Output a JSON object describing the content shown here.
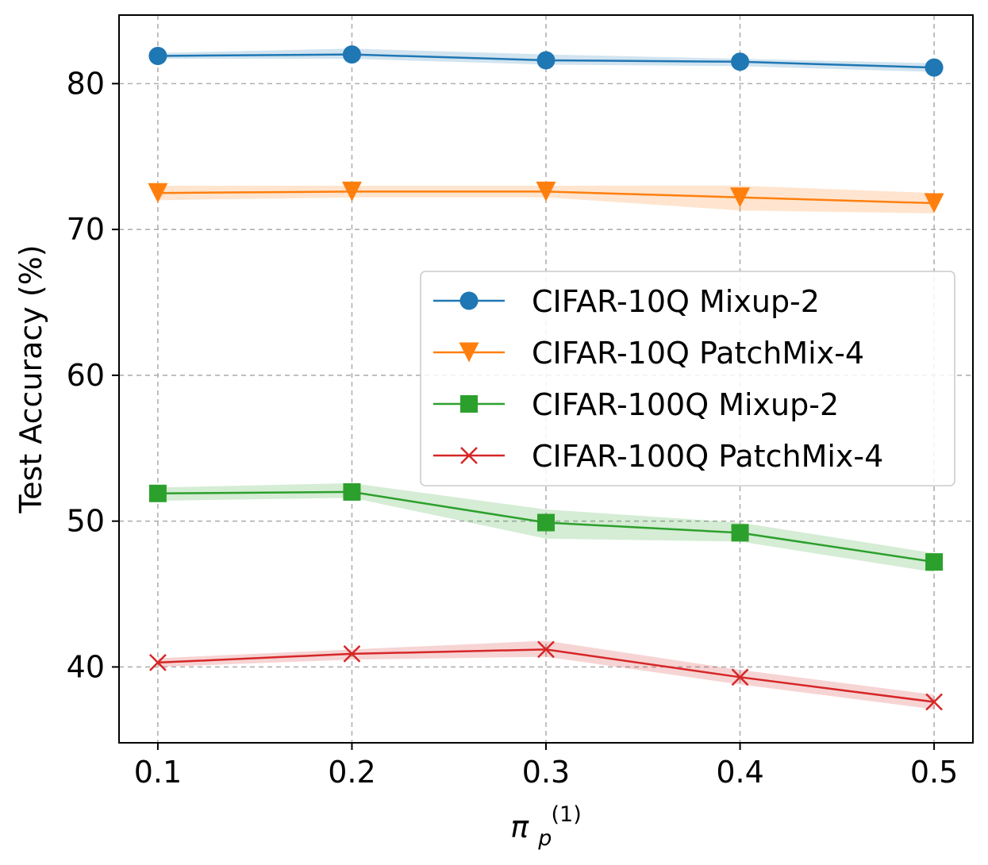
{
  "chart_data": {
    "type": "line",
    "title": "",
    "xlabel": "π",
    "xlabel_sub": "p",
    "xlabel_sup": "(1)",
    "ylabel": "Test Accuracy (%)",
    "x": [
      0.1,
      0.2,
      0.3,
      0.4,
      0.5
    ],
    "x_tick_labels": [
      "0.1",
      "0.2",
      "0.3",
      "0.4",
      "0.5"
    ],
    "y_ticks": [
      40,
      50,
      60,
      70,
      80
    ],
    "y_tick_labels": [
      "40",
      "50",
      "60",
      "70",
      "80"
    ],
    "xlim": [
      0.08,
      0.52
    ],
    "ylim": [
      34.8,
      84.7
    ],
    "grid": true,
    "legend_position": "center-right",
    "series": [
      {
        "name": "CIFAR-10Q Mixup-2",
        "color": "#1f77b4",
        "marker": "circle",
        "values": [
          81.9,
          82.0,
          81.6,
          81.5,
          81.1
        ],
        "lower": [
          81.7,
          81.7,
          81.3,
          81.2,
          80.8
        ],
        "upper": [
          82.1,
          82.4,
          82.0,
          81.7,
          81.4
        ]
      },
      {
        "name": "CIFAR-10Q PatchMix-4",
        "color": "#ff7f0e",
        "marker": "triangle-down",
        "values": [
          72.5,
          72.6,
          72.6,
          72.2,
          71.8
        ],
        "lower": [
          72.0,
          72.2,
          72.2,
          71.3,
          71.1
        ],
        "upper": [
          73.0,
          73.0,
          73.0,
          73.0,
          72.5
        ]
      },
      {
        "name": "CIFAR-100Q Mixup-2",
        "color": "#2ca02c",
        "marker": "square",
        "values": [
          51.9,
          52.0,
          49.9,
          49.2,
          47.2
        ],
        "lower": [
          51.4,
          51.6,
          48.8,
          48.6,
          46.5
        ],
        "upper": [
          52.3,
          52.6,
          50.8,
          49.9,
          47.8
        ]
      },
      {
        "name": "CIFAR-100Q PatchMix-4",
        "color": "#d62728",
        "marker": "x",
        "values": [
          40.3,
          40.9,
          41.2,
          39.3,
          37.6
        ],
        "lower": [
          40.0,
          40.5,
          40.7,
          38.8,
          37.1
        ],
        "upper": [
          40.6,
          41.2,
          41.8,
          39.8,
          38.1
        ]
      }
    ]
  }
}
